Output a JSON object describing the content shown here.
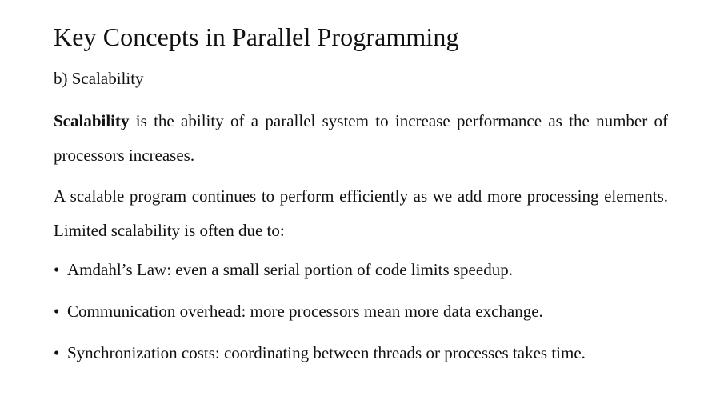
{
  "slide": {
    "title": "Key Concepts in Parallel Programming",
    "subtitle": "b) Scalability",
    "paragraphs": [
      {
        "term": "Scalability",
        "text": " is the ability of a parallel system to increase performance as the number of processors increases."
      },
      {
        "text": "A scalable program continues to perform efficiently as we add more processing elements. Limited scalability is often due to:"
      }
    ],
    "bullet_symbol": "•",
    "bullets": [
      "Amdahl’s Law: even a small serial portion of code limits speedup.",
      "Communication overhead: more processors mean more data exchange.",
      "Synchronization costs: coordinating between threads or processes takes time."
    ]
  }
}
